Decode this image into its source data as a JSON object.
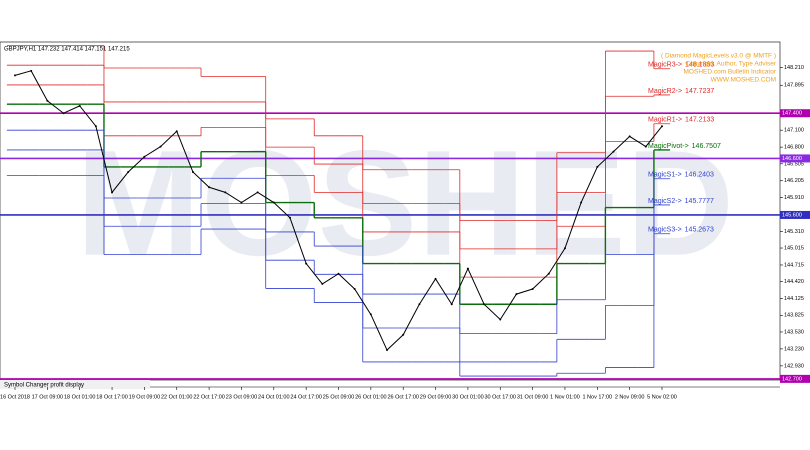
{
  "chart_data": {
    "type": "line",
    "title": "GBPJPY,H1 147.232 147.414 147.151 147.215",
    "watermark": "MOSHED",
    "annotations": [
      "( Diamond MagicLevels v3.0 @ MMTF )",
      "Copyright, Author, Type Adviser",
      "MOSHED.com Bulletin Indicator",
      "WWW.MOSHED.COM"
    ],
    "footer": "Symbol Changer profit display",
    "categories": [
      "16 Oct 2018",
      null,
      "17 Oct 09:00",
      null,
      "18 Oct 01:00",
      null,
      "18 Oct 17:00",
      null,
      "19 Oct 09:00",
      null,
      "22 Oct 01:00",
      null,
      "22 Oct 17:00",
      null,
      "23 Oct 09:00",
      null,
      "24 Oct 01:00",
      null,
      "24 Oct 17:00",
      null,
      "25 Oct 09:00",
      null,
      "26 Oct 01:00",
      null,
      "26 Oct 17:00",
      null,
      "29 Oct 09:00",
      null,
      "30 Oct 01:00",
      null,
      "30 Oct 17:00",
      null,
      "31 Oct 09:00",
      null,
      "1 Nov 01:00",
      null,
      "1 Nov 17:00",
      null,
      "2 Nov 09:00",
      null,
      "5 Nov 02:00"
    ],
    "price": {
      "color": "#000000",
      "values": [
        148.07,
        148.15,
        147.62,
        147.4,
        147.53,
        147.17,
        146.0,
        146.36,
        146.63,
        146.81,
        147.08,
        146.36,
        146.09,
        146.0,
        145.82,
        146.0,
        145.82,
        145.55,
        144.74,
        144.38,
        144.56,
        144.29,
        143.84,
        143.21,
        143.48,
        144.02,
        144.47,
        144.02,
        144.65,
        144.02,
        143.75,
        144.2,
        144.29,
        144.56,
        145.01,
        145.82,
        146.45,
        146.72,
        146.99,
        146.81,
        147.17
      ]
    },
    "series": [
      {
        "name": "MagicR3->",
        "color": "#e02828",
        "values": [
          148.6,
          148.6,
          148.6,
          148.6,
          148.6,
          148.6,
          148.2,
          148.2,
          148.2,
          148.2,
          148.2,
          148.2,
          148.05,
          148.05,
          148.05,
          148.05,
          147.3,
          147.3,
          147.3,
          147.0,
          147.0,
          147.0,
          146.4,
          146.4,
          146.4,
          146.4,
          146.4,
          146.4,
          145.5,
          145.5,
          145.5,
          145.5,
          145.5,
          145.5,
          146.7,
          146.7,
          146.7,
          148.5,
          148.5,
          148.5,
          148.1863
        ]
      },
      {
        "name": "MagicR2->",
        "color": "#e02828",
        "values": [
          148.25,
          148.25,
          148.25,
          148.25,
          148.25,
          148.25,
          147.6,
          147.6,
          147.6,
          147.6,
          147.6,
          147.6,
          147.6,
          147.6,
          147.6,
          147.6,
          146.8,
          146.8,
          146.8,
          146.5,
          146.5,
          146.5,
          145.8,
          145.8,
          145.8,
          145.8,
          145.8,
          145.8,
          145.0,
          145.0,
          145.0,
          145.0,
          145.0,
          145.0,
          146.0,
          146.0,
          146.0,
          147.7,
          147.7,
          147.7,
          147.7237
        ]
      },
      {
        "name": "MagicR1->",
        "color": "#e02828",
        "values": [
          147.9,
          147.9,
          147.9,
          147.9,
          147.9,
          147.9,
          147.0,
          147.0,
          147.0,
          147.0,
          147.0,
          147.0,
          147.15,
          147.15,
          147.15,
          147.15,
          146.3,
          146.3,
          146.3,
          146.0,
          146.0,
          146.0,
          145.3,
          145.3,
          145.3,
          145.3,
          145.3,
          145.3,
          144.5,
          144.5,
          144.5,
          144.5,
          144.5,
          144.5,
          145.4,
          145.4,
          145.4,
          146.9,
          146.9,
          146.9,
          147.2133
        ]
      },
      {
        "name": "MagicPivot->",
        "color": "#0a6e0a",
        "values": [
          147.56,
          147.56,
          147.56,
          147.56,
          147.56,
          147.56,
          146.45,
          146.45,
          146.45,
          146.45,
          146.45,
          146.45,
          146.72,
          146.72,
          146.72,
          146.72,
          145.82,
          145.82,
          145.82,
          145.55,
          145.55,
          145.55,
          144.74,
          144.74,
          144.74,
          144.74,
          144.74,
          144.74,
          144.02,
          144.02,
          144.02,
          144.02,
          144.02,
          144.02,
          144.74,
          144.74,
          144.74,
          145.73,
          145.73,
          145.73,
          146.7507
        ]
      },
      {
        "name": "MagicS1->",
        "color": "#3040d0",
        "values": [
          147.1,
          147.1,
          147.1,
          147.1,
          147.1,
          147.1,
          145.9,
          145.9,
          145.9,
          145.9,
          145.9,
          145.9,
          146.25,
          146.25,
          146.25,
          146.25,
          145.3,
          145.3,
          145.3,
          145.05,
          145.05,
          145.05,
          144.2,
          144.2,
          144.2,
          144.2,
          144.2,
          144.2,
          143.5,
          143.5,
          143.5,
          143.5,
          143.5,
          143.5,
          144.1,
          144.1,
          144.1,
          144.9,
          144.9,
          144.9,
          146.2403
        ]
      },
      {
        "name": "MagicS2->",
        "color": "#3040d0",
        "values": [
          146.75,
          146.75,
          146.75,
          146.75,
          146.75,
          146.75,
          145.4,
          145.4,
          145.4,
          145.4,
          145.4,
          145.4,
          145.8,
          145.8,
          145.8,
          145.8,
          144.8,
          144.8,
          144.8,
          144.55,
          144.55,
          144.55,
          143.6,
          143.6,
          143.6,
          143.6,
          143.6,
          143.6,
          143.0,
          143.0,
          143.0,
          143.0,
          143.0,
          143.0,
          143.4,
          143.4,
          143.4,
          144.0,
          144.0,
          144.0,
          145.7777
        ]
      },
      {
        "name": "MagicS3->",
        "color": "#3040d0",
        "values": [
          146.3,
          146.3,
          146.3,
          146.3,
          146.3,
          146.3,
          144.9,
          144.9,
          144.9,
          144.9,
          144.9,
          144.9,
          145.35,
          145.35,
          145.35,
          145.35,
          144.3,
          144.3,
          144.3,
          144.05,
          144.05,
          144.05,
          143.0,
          143.0,
          143.0,
          143.0,
          143.0,
          143.0,
          142.75,
          142.75,
          142.75,
          142.75,
          142.75,
          142.75,
          142.8,
          142.8,
          142.8,
          142.9,
          142.9,
          142.9,
          145.2673
        ]
      }
    ],
    "hlines": [
      {
        "value": 147.4,
        "label": "147.400",
        "color": "#b000b0"
      },
      {
        "value": 146.6,
        "label": "146.600",
        "color": "#8a2be2"
      },
      {
        "value": 145.6,
        "label": "145.600",
        "color": "#3030c0"
      },
      {
        "value": 142.7,
        "label": "142.700",
        "color": "#b000b0"
      }
    ],
    "ylim": [
      142.68,
      148.66
    ],
    "yticks": [
      {
        "value": 142.93,
        "label": "142.930"
      },
      {
        "value": 143.23,
        "label": "143.230"
      },
      {
        "value": 143.53,
        "label": "143.530"
      },
      {
        "value": 143.825,
        "label": "143.825"
      },
      {
        "value": 144.125,
        "label": "144.125"
      },
      {
        "value": 144.42,
        "label": "144.420"
      },
      {
        "value": 144.715,
        "label": "144.715"
      },
      {
        "value": 145.015,
        "label": "145.015"
      },
      {
        "value": 145.31,
        "label": "145.310"
      },
      {
        "value": 145.91,
        "label": "145.910"
      },
      {
        "value": 146.205,
        "label": "146.205"
      },
      {
        "value": 146.505,
        "label": "146.505"
      },
      {
        "value": 146.8,
        "label": "146.800"
      },
      {
        "value": 147.1,
        "label": "147.100"
      },
      {
        "value": 147.895,
        "label": "147.895"
      },
      {
        "value": 148.21,
        "label": "148.210"
      }
    ],
    "grid": false
  }
}
